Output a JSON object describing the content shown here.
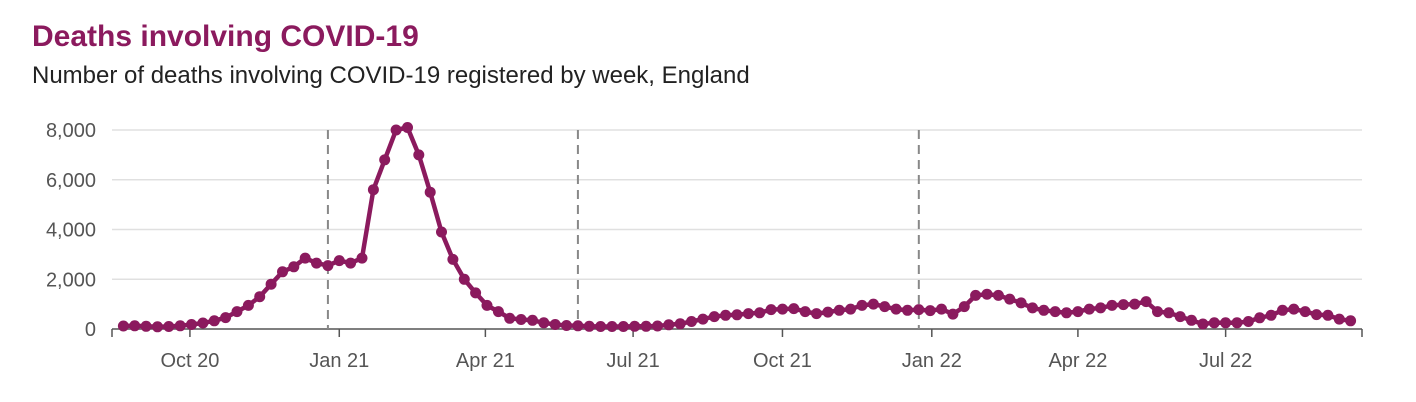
{
  "header": {
    "title": "Deaths involving COVID-19",
    "subtitle": "Number of deaths involving COVID-19 registered by week, England"
  },
  "colors": {
    "series": "#8b1a5e",
    "grid": "#e0e0e0",
    "axis": "#555555",
    "marker_line": "#888888"
  },
  "chart_data": {
    "type": "line",
    "title": "Deaths involving COVID-19",
    "subtitle": "Number of deaths involving COVID-19 registered by week, England",
    "xlabel": "",
    "ylabel": "",
    "ylim": [
      0,
      8000
    ],
    "xlim": [
      "2020-08-14",
      "2022-09-23"
    ],
    "grid": true,
    "legend": "none",
    "y_ticks": [
      0,
      2000,
      4000,
      6000,
      8000
    ],
    "y_tick_labels": [
      "0",
      "2,000",
      "4,000",
      "6,000",
      "8,000"
    ],
    "x_tick_dates": [
      "2020-10-01",
      "2021-01-01",
      "2021-04-01",
      "2021-07-01",
      "2021-10-01",
      "2022-01-01",
      "2022-04-01",
      "2022-07-01"
    ],
    "x_tick_labels": [
      "Oct 20",
      "Jan 21",
      "Apr 21",
      "Jul 21",
      "Oct 21",
      "Jan 22",
      "Apr 22",
      "Jul 22"
    ],
    "vertical_markers": [
      "2020-12-25",
      "2021-05-28",
      "2021-12-24"
    ],
    "series": [
      {
        "x": [
          "2020-08-21",
          "2020-08-28",
          "2020-09-04",
          "2020-09-11",
          "2020-09-18",
          "2020-09-25",
          "2020-10-02",
          "2020-10-09",
          "2020-10-16",
          "2020-10-23",
          "2020-10-30",
          "2020-11-06",
          "2020-11-13",
          "2020-11-20",
          "2020-11-27",
          "2020-12-04",
          "2020-12-11",
          "2020-12-18",
          "2020-12-25",
          "2021-01-01",
          "2021-01-08",
          "2021-01-15",
          "2021-01-22",
          "2021-01-29",
          "2021-02-05",
          "2021-02-12",
          "2021-02-19",
          "2021-02-26",
          "2021-03-05",
          "2021-03-12",
          "2021-03-19",
          "2021-03-26",
          "2021-04-02",
          "2021-04-09",
          "2021-04-16",
          "2021-04-23",
          "2021-04-30",
          "2021-05-07",
          "2021-05-14",
          "2021-05-21",
          "2021-05-28",
          "2021-06-04",
          "2021-06-11",
          "2021-06-18",
          "2021-06-25",
          "2021-07-02",
          "2021-07-09",
          "2021-07-16",
          "2021-07-23",
          "2021-07-30",
          "2021-08-06",
          "2021-08-13",
          "2021-08-20",
          "2021-08-27",
          "2021-09-03",
          "2021-09-10",
          "2021-09-17",
          "2021-09-24",
          "2021-10-01",
          "2021-10-08",
          "2021-10-15",
          "2021-10-22",
          "2021-10-29",
          "2021-11-05",
          "2021-11-12",
          "2021-11-19",
          "2021-11-26",
          "2021-12-03",
          "2021-12-10",
          "2021-12-17",
          "2021-12-24",
          "2021-12-31",
          "2022-01-07",
          "2022-01-14",
          "2022-01-21",
          "2022-01-28",
          "2022-02-04",
          "2022-02-11",
          "2022-02-18",
          "2022-02-25",
          "2022-03-04",
          "2022-03-11",
          "2022-03-18",
          "2022-03-25",
          "2022-04-01",
          "2022-04-08",
          "2022-04-15",
          "2022-04-22",
          "2022-04-29",
          "2022-05-06",
          "2022-05-13",
          "2022-05-20",
          "2022-05-27",
          "2022-06-03",
          "2022-06-10",
          "2022-06-17",
          "2022-06-24",
          "2022-07-01",
          "2022-07-08",
          "2022-07-15",
          "2022-07-22",
          "2022-07-29",
          "2022-08-05",
          "2022-08-12",
          "2022-08-19",
          "2022-08-26",
          "2022-09-02",
          "2022-09-09",
          "2022-09-16"
        ],
        "values": [
          120,
          130,
          110,
          90,
          100,
          130,
          180,
          240,
          330,
          460,
          700,
          950,
          1300,
          1800,
          2300,
          2500,
          2850,
          2650,
          2550,
          2750,
          2650,
          2850,
          5600,
          6800,
          8000,
          8100,
          7000,
          5500,
          3900,
          2800,
          2000,
          1450,
          950,
          700,
          430,
          380,
          350,
          250,
          180,
          140,
          130,
          110,
          100,
          100,
          100,
          110,
          110,
          120,
          170,
          210,
          300,
          400,
          500,
          550,
          570,
          620,
          650,
          780,
          800,
          820,
          700,
          620,
          680,
          750,
          800,
          950,
          1000,
          900,
          800,
          750,
          780,
          740,
          800,
          600,
          900,
          1350,
          1400,
          1350,
          1200,
          1050,
          850,
          750,
          700,
          650,
          700,
          800,
          850,
          950,
          980,
          1000,
          1100,
          700,
          650,
          500,
          350,
          200,
          250,
          250,
          250,
          300,
          450,
          550,
          750,
          800,
          700,
          580,
          550,
          400,
          330
        ]
      }
    ]
  }
}
